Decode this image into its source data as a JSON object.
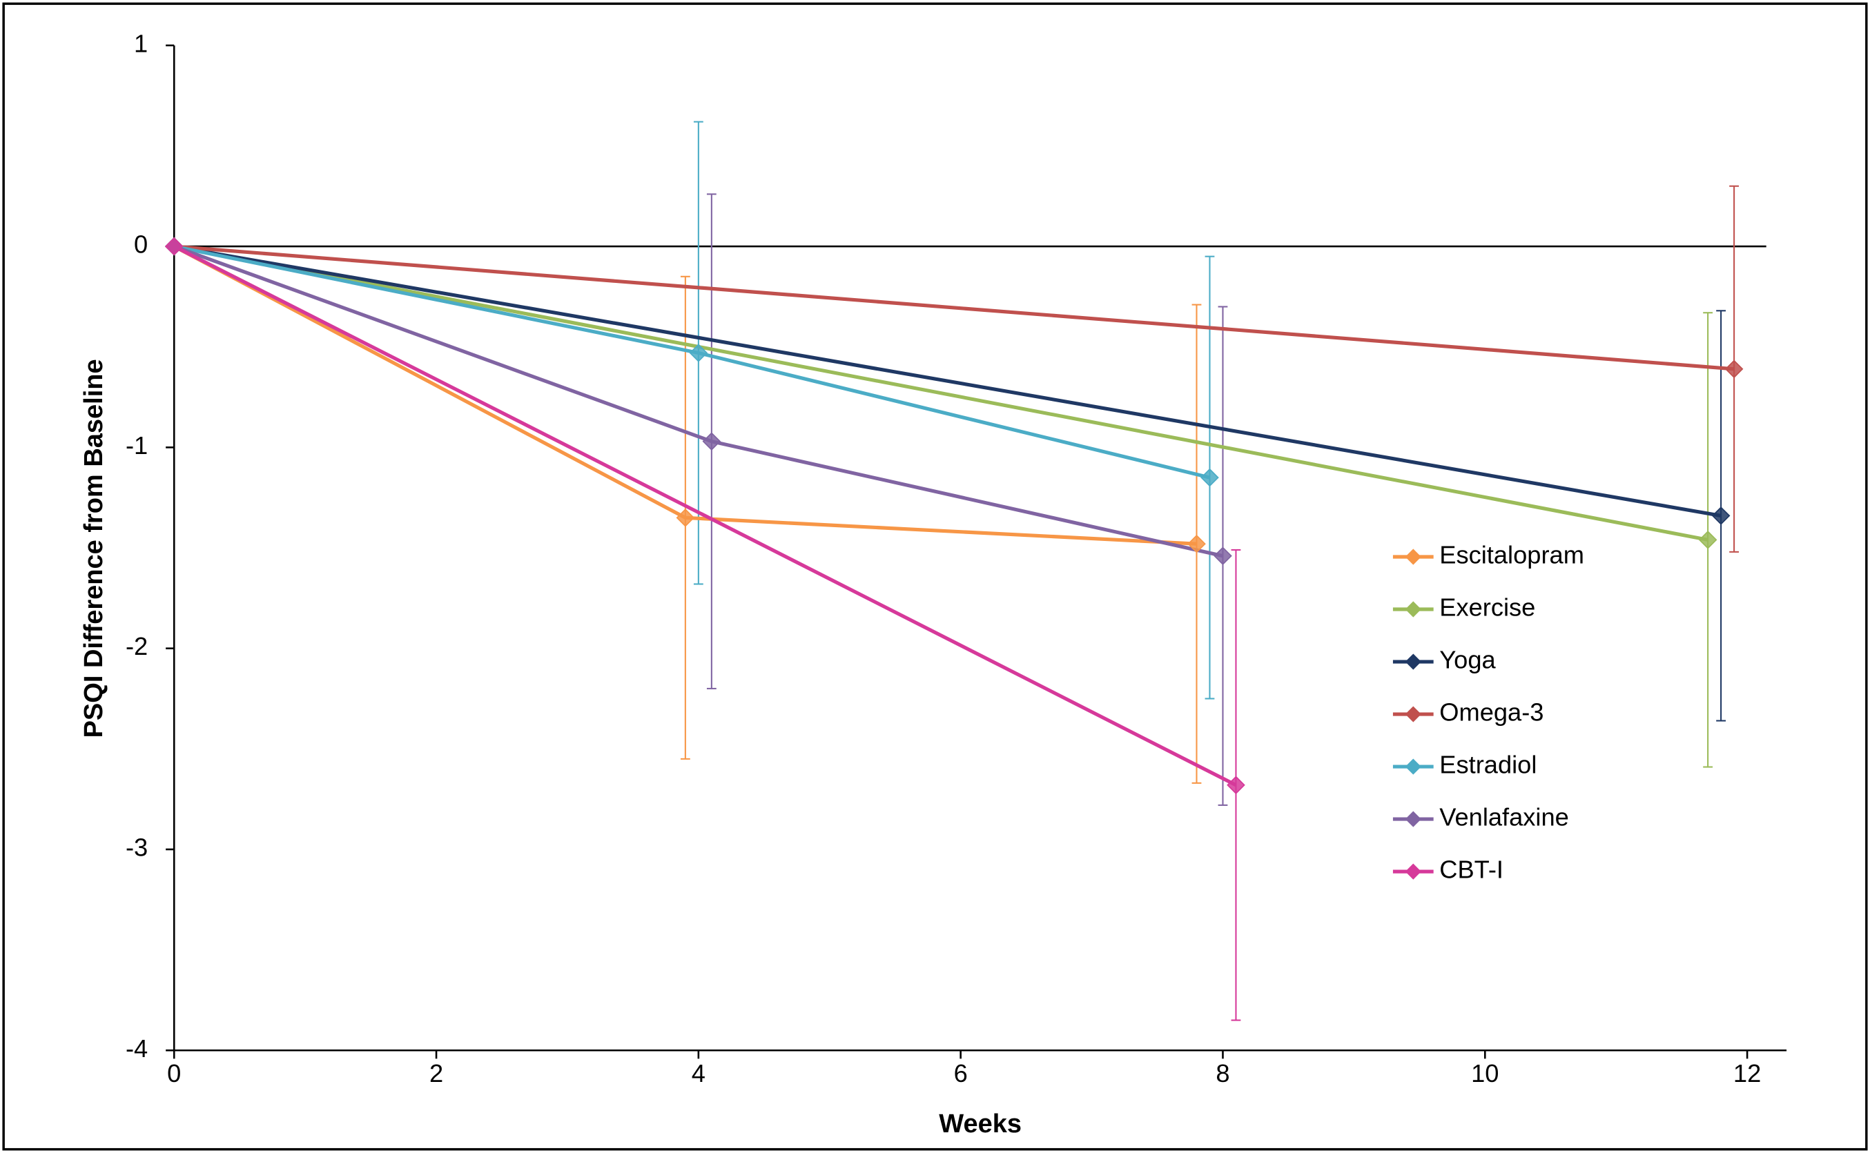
{
  "chart_data": {
    "type": "line",
    "xlabel": "Weeks",
    "ylabel": "PSQI Difference from Baseline",
    "xlim": [
      0,
      12.3
    ],
    "ylim": [
      -4,
      1
    ],
    "xticks": [
      0,
      2,
      4,
      6,
      8,
      10,
      12
    ],
    "yticks": [
      1,
      0,
      -1,
      -2,
      -3,
      -4
    ],
    "grid": false,
    "hline": 0,
    "legend": "right",
    "series": [
      {
        "name": "Escitalopram",
        "color": "#f79646",
        "x": [
          0,
          3.9,
          7.8
        ],
        "values": [
          0,
          -1.35,
          -1.48
        ],
        "errors": [
          null,
          1.2,
          1.19
        ]
      },
      {
        "name": "Exercise",
        "color": "#9bbb59",
        "x": [
          0,
          11.7
        ],
        "values": [
          0,
          -1.46
        ],
        "errors": [
          null,
          1.13
        ]
      },
      {
        "name": "Yoga",
        "color": "#1f3864",
        "x": [
          0,
          11.8
        ],
        "values": [
          0,
          -1.34
        ],
        "errors": [
          null,
          1.02
        ]
      },
      {
        "name": "Omega-3",
        "color": "#c0504d",
        "x": [
          0,
          11.9
        ],
        "values": [
          0,
          -0.61
        ],
        "errors": [
          null,
          0.91
        ]
      },
      {
        "name": "Estradiol",
        "color": "#4bacc6",
        "x": [
          0,
          4.0,
          7.9
        ],
        "values": [
          0,
          -0.53,
          -1.15
        ],
        "errors": [
          null,
          1.15,
          1.1
        ]
      },
      {
        "name": "Venlafaxine",
        "color": "#8064a2",
        "x": [
          0,
          4.1,
          8.0
        ],
        "values": [
          0,
          -0.97,
          -1.54
        ],
        "errors": [
          null,
          1.23,
          1.24
        ]
      },
      {
        "name": "CBT-I",
        "color": "#d6399a",
        "x": [
          0,
          8.1
        ],
        "values": [
          0,
          -2.68
        ],
        "errors": [
          null,
          1.17
        ]
      }
    ]
  }
}
